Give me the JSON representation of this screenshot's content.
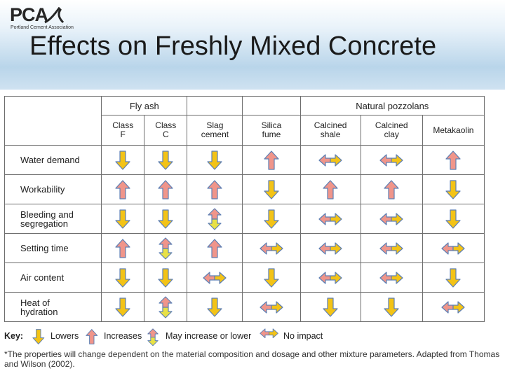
{
  "logo": {
    "text": "PCA",
    "subtitle": "Portland Cement Association"
  },
  "slide": {
    "title": "Effects on Freshly Mixed Concrete"
  },
  "table": {
    "group_headers": {
      "fly_ash": "Fly ash",
      "natural_pozzolans": "Natural pozzolans"
    },
    "subheaders": {
      "class_f": [
        "Class",
        "F"
      ],
      "class_c": [
        "Class",
        "C"
      ],
      "slag": [
        "Slag",
        "cement"
      ],
      "silica": [
        "Silica",
        "fume"
      ],
      "shale": [
        "Calcined",
        "shale"
      ],
      "clay": [
        "Calcined",
        "clay"
      ],
      "metakaolin": [
        "Metakaolin"
      ]
    },
    "rows": [
      {
        "label": [
          "Water demand"
        ],
        "effects": [
          "lower",
          "lower",
          "lower",
          "increase",
          "none",
          "none",
          "increase"
        ]
      },
      {
        "label": [
          "Workability"
        ],
        "effects": [
          "increase",
          "increase",
          "increase",
          "lower",
          "increase",
          "increase",
          "lower"
        ]
      },
      {
        "label": [
          "Bleeding and",
          "segregation"
        ],
        "effects": [
          "lower",
          "lower",
          "either",
          "lower",
          "none",
          "none",
          "lower"
        ]
      },
      {
        "label": [
          "Setting time"
        ],
        "effects": [
          "increase",
          "either",
          "increase",
          "none",
          "none",
          "none",
          "none"
        ]
      },
      {
        "label": [
          "Air content"
        ],
        "effects": [
          "lower",
          "lower",
          "none",
          "lower",
          "none",
          "none",
          "lower"
        ]
      },
      {
        "label": [
          "Heat of",
          "hydration"
        ],
        "effects": [
          "lower",
          "either",
          "lower",
          "none",
          "lower",
          "lower",
          "none"
        ]
      }
    ]
  },
  "key": {
    "title": "Key:",
    "lowers": "Lowers",
    "increases": "Increases",
    "either": "May increase or lower",
    "none": "No impact"
  },
  "footnote": "*The properties will change dependent on the material composition and dosage and other mixture parameters. Adapted from Thomas and Wilson (2002).",
  "colors": {
    "lower": "#f3c316",
    "increase": "#f0958a",
    "either_down": "#e8e146",
    "either_up": "#f0958a",
    "none_left": "#f0958a",
    "none_right": "#f3c316",
    "arrow_stroke": "#5d7fb4"
  }
}
